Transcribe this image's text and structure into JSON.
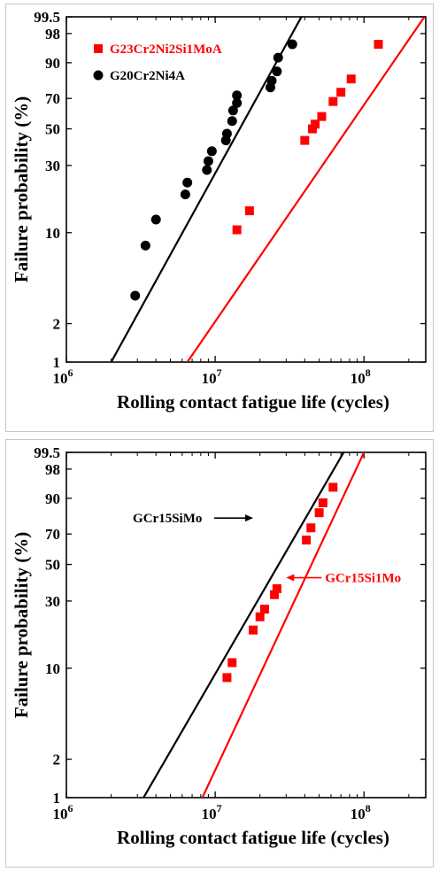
{
  "chart_data": [
    {
      "type": "scatter",
      "xlabel": "Rolling contact fatigue life (cycles)",
      "ylabel": "Failure probability (%)",
      "xscale": "log",
      "yscale": "weibull",
      "xlim": [
        1000000,
        260000000
      ],
      "ylim": [
        1,
        99.5
      ],
      "yticks": [
        1,
        2,
        10,
        30,
        50,
        70,
        90,
        98,
        99.5
      ],
      "xticks": [
        {
          "base": "10",
          "exp": "6",
          "value": 1000000
        },
        {
          "base": "10",
          "exp": "7",
          "value": 10000000
        },
        {
          "base": "10",
          "exp": "8",
          "value": 100000000
        }
      ],
      "legend_position": "top-left",
      "series": [
        {
          "name": "G23Cr2Ni2Si1MoA",
          "color": "#ff0000",
          "marker": "square",
          "points": [
            {
              "x": 14000000,
              "y": 10.5
            },
            {
              "x": 17000000,
              "y": 14.5
            },
            {
              "x": 40000000,
              "y": 43
            },
            {
              "x": 45000000,
              "y": 50
            },
            {
              "x": 47000000,
              "y": 53
            },
            {
              "x": 52000000,
              "y": 58
            },
            {
              "x": 62000000,
              "y": 68
            },
            {
              "x": 70000000,
              "y": 74
            },
            {
              "x": 82000000,
              "y": 82
            },
            {
              "x": 125000000,
              "y": 96
            }
          ],
          "fit_line": [
            {
              "x": 6500000,
              "y": 1
            },
            {
              "x": 255000000,
              "y": 99.5
            }
          ]
        },
        {
          "name": "G20Cr2Ni4A",
          "color": "#000000",
          "marker": "circle",
          "points": [
            {
              "x": 2900000,
              "y": 3.3
            },
            {
              "x": 3400000,
              "y": 8
            },
            {
              "x": 4000000,
              "y": 12.5
            },
            {
              "x": 6300000,
              "y": 19
            },
            {
              "x": 6500000,
              "y": 23
            },
            {
              "x": 8800000,
              "y": 28
            },
            {
              "x": 9000000,
              "y": 32
            },
            {
              "x": 9500000,
              "y": 37
            },
            {
              "x": 11800000,
              "y": 43
            },
            {
              "x": 12000000,
              "y": 47
            },
            {
              "x": 13000000,
              "y": 55
            },
            {
              "x": 13200000,
              "y": 62
            },
            {
              "x": 14000000,
              "y": 67
            },
            {
              "x": 14000000,
              "y": 72
            },
            {
              "x": 23500000,
              "y": 77
            },
            {
              "x": 24000000,
              "y": 81
            },
            {
              "x": 26000000,
              "y": 86
            },
            {
              "x": 26500000,
              "y": 92
            },
            {
              "x": 33000000,
              "y": 96
            }
          ],
          "fit_line": [
            {
              "x": 2000000,
              "y": 1
            },
            {
              "x": 38000000,
              "y": 99.5
            }
          ]
        }
      ]
    },
    {
      "type": "scatter",
      "xlabel": "Rolling contact fatigue life (cycles)",
      "ylabel": "Failure probability (%)",
      "xscale": "log",
      "yscale": "weibull",
      "xlim": [
        1000000,
        260000000
      ],
      "ylim": [
        1,
        99.5
      ],
      "yticks": [
        1,
        2,
        10,
        30,
        50,
        70,
        90,
        98,
        99.5
      ],
      "xticks": [
        {
          "base": "10",
          "exp": "6",
          "value": 1000000
        },
        {
          "base": "10",
          "exp": "7",
          "value": 10000000
        },
        {
          "base": "10",
          "exp": "8",
          "value": 100000000
        }
      ],
      "series": [
        {
          "name": "GCr15SiMo",
          "color": "#000000",
          "marker": "none",
          "points": [],
          "fit_line": [
            {
              "x": 3300000,
              "y": 1
            },
            {
              "x": 73000000,
              "y": 99.5
            }
          ]
        },
        {
          "name": "GCr15Si1Mo",
          "color": "#ff0000",
          "marker": "square",
          "points": [
            {
              "x": 12000000,
              "y": 8.5
            },
            {
              "x": 13000000,
              "y": 11
            },
            {
              "x": 18000000,
              "y": 19
            },
            {
              "x": 20000000,
              "y": 23.5
            },
            {
              "x": 21500000,
              "y": 26.5
            },
            {
              "x": 25000000,
              "y": 33
            },
            {
              "x": 26000000,
              "y": 36
            },
            {
              "x": 41000000,
              "y": 66
            },
            {
              "x": 44000000,
              "y": 74
            },
            {
              "x": 50000000,
              "y": 83
            },
            {
              "x": 53000000,
              "y": 88
            },
            {
              "x": 62000000,
              "y": 94
            }
          ],
          "fit_line": [
            {
              "x": 8200000,
              "y": 1
            },
            {
              "x": 100000000,
              "y": 99.5
            }
          ]
        }
      ],
      "annotations": [
        {
          "text": "GCr15SiMo",
          "color": "#000000",
          "arrow_to": {
            "x": 18000000,
            "y": 80
          }
        },
        {
          "text": "GCr15Si1Mo",
          "color": "#ff0000",
          "arrow_to": {
            "x": 30000000,
            "y": 42
          }
        }
      ]
    }
  ]
}
